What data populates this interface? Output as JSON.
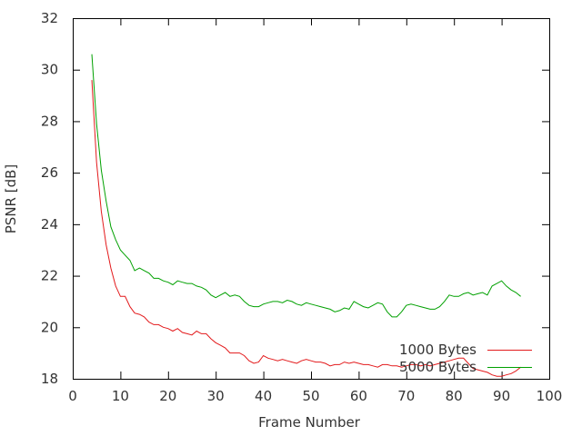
{
  "chart_data": {
    "type": "line",
    "title": "",
    "xlabel": "Frame Number",
    "ylabel": "PSNR [dB]",
    "xlim": [
      0,
      100
    ],
    "ylim": [
      18,
      32
    ],
    "xticks": [
      0,
      10,
      20,
      30,
      40,
      50,
      60,
      70,
      80,
      90,
      100
    ],
    "yticks": [
      18,
      20,
      22,
      24,
      26,
      28,
      30,
      32
    ],
    "grid": false,
    "legend_position": "bottom-right",
    "series": [
      {
        "name": "1000 Bytes",
        "color": "#e31a1c",
        "x": [
          4,
          5,
          6,
          7,
          8,
          9,
          10,
          11,
          12,
          13,
          14,
          15,
          16,
          17,
          18,
          19,
          20,
          21,
          22,
          23,
          24,
          25,
          26,
          27,
          28,
          29,
          30,
          31,
          32,
          33,
          34,
          35,
          36,
          37,
          38,
          39,
          40,
          41,
          42,
          43,
          44,
          45,
          46,
          47,
          48,
          49,
          50,
          51,
          52,
          53,
          54,
          55,
          56,
          57,
          58,
          59,
          60,
          61,
          62,
          63,
          64,
          65,
          66,
          67,
          68,
          69,
          70,
          71,
          72,
          73,
          74,
          75,
          76,
          77,
          78,
          79,
          80,
          81,
          82,
          83,
          84,
          85,
          86,
          87,
          88,
          89,
          90,
          91,
          92,
          93,
          94
        ],
        "y": [
          29.6,
          26.4,
          24.5,
          23.2,
          22.3,
          21.6,
          21.2,
          21.2,
          20.8,
          20.55,
          20.5,
          20.4,
          20.2,
          20.1,
          20.1,
          20.0,
          19.95,
          19.85,
          19.95,
          19.8,
          19.75,
          19.7,
          19.85,
          19.75,
          19.75,
          19.55,
          19.4,
          19.3,
          19.2,
          19.0,
          19.0,
          19.0,
          18.9,
          18.7,
          18.6,
          18.65,
          18.9,
          18.8,
          18.75,
          18.7,
          18.75,
          18.7,
          18.65,
          18.6,
          18.7,
          18.75,
          18.7,
          18.65,
          18.65,
          18.6,
          18.5,
          18.55,
          18.55,
          18.65,
          18.6,
          18.65,
          18.6,
          18.55,
          18.55,
          18.5,
          18.45,
          18.55,
          18.55,
          18.5,
          18.5,
          18.45,
          18.5,
          18.55,
          18.55,
          18.5,
          18.55,
          18.5,
          18.55,
          18.6,
          18.65,
          18.7,
          18.75,
          18.8,
          18.8,
          18.6,
          18.4,
          18.35,
          18.3,
          18.25,
          18.15,
          18.1,
          18.1,
          18.15,
          18.2,
          18.3,
          18.45
        ]
      },
      {
        "name": "5000 Bytes",
        "color": "#00a000",
        "x": [
          4,
          5,
          6,
          7,
          8,
          9,
          10,
          11,
          12,
          13,
          14,
          15,
          16,
          17,
          18,
          19,
          20,
          21,
          22,
          23,
          24,
          25,
          26,
          27,
          28,
          29,
          30,
          31,
          32,
          33,
          34,
          35,
          36,
          37,
          38,
          39,
          40,
          41,
          42,
          43,
          44,
          45,
          46,
          47,
          48,
          49,
          50,
          51,
          52,
          53,
          54,
          55,
          56,
          57,
          58,
          59,
          60,
          61,
          62,
          63,
          64,
          65,
          66,
          67,
          68,
          69,
          70,
          71,
          72,
          73,
          74,
          75,
          76,
          77,
          78,
          79,
          80,
          81,
          82,
          83,
          84,
          85,
          86,
          87,
          88,
          89,
          90,
          91,
          92,
          93,
          94
        ],
        "y": [
          30.6,
          27.9,
          26.1,
          24.9,
          23.9,
          23.4,
          23.0,
          22.8,
          22.6,
          22.2,
          22.3,
          22.2,
          22.1,
          21.9,
          21.9,
          21.8,
          21.75,
          21.65,
          21.8,
          21.75,
          21.7,
          21.7,
          21.6,
          21.55,
          21.45,
          21.25,
          21.15,
          21.25,
          21.35,
          21.2,
          21.25,
          21.2,
          21.0,
          20.85,
          20.8,
          20.8,
          20.9,
          20.95,
          21.0,
          21.0,
          20.95,
          21.05,
          21.0,
          20.9,
          20.85,
          20.95,
          20.9,
          20.85,
          20.8,
          20.75,
          20.7,
          20.6,
          20.65,
          20.75,
          20.7,
          21.0,
          20.9,
          20.8,
          20.75,
          20.85,
          20.95,
          20.9,
          20.6,
          20.4,
          20.4,
          20.6,
          20.85,
          20.9,
          20.85,
          20.8,
          20.75,
          20.7,
          20.7,
          20.8,
          21.0,
          21.25,
          21.2,
          21.2,
          21.3,
          21.35,
          21.25,
          21.3,
          21.35,
          21.25,
          21.6,
          21.7,
          21.8,
          21.6,
          21.45,
          21.35,
          21.2
        ]
      }
    ]
  }
}
